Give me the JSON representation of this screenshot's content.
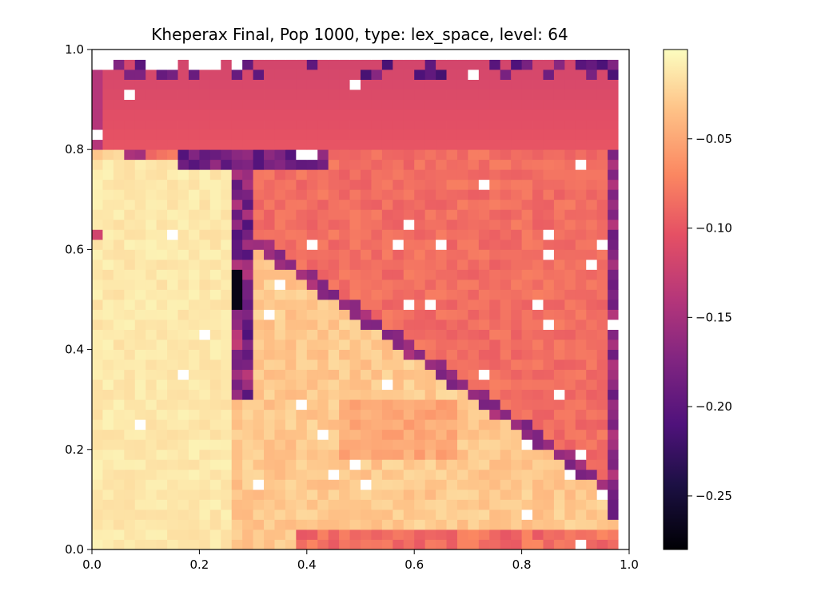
{
  "chart_data": {
    "type": "heatmap",
    "title": "Kheperax Final, Pop 1000, type: lex_space, level: 64",
    "xlabel": "",
    "ylabel": "",
    "xlim": [
      0.0,
      1.0
    ],
    "ylim": [
      0.0,
      1.0
    ],
    "x_ticks": [
      "0.0",
      "0.2",
      "0.4",
      "0.6",
      "0.8",
      "1.0"
    ],
    "y_ticks": [
      "0.0",
      "0.2",
      "0.4",
      "0.6",
      "0.8",
      "1.0"
    ],
    "grid": false,
    "resolution": [
      50,
      50
    ],
    "colormap": "magma",
    "colorbar": {
      "vmin": -0.28,
      "vmax": 0.0,
      "ticks": [
        "−0.05",
        "−0.10",
        "−0.15",
        "−0.20",
        "−0.25"
      ],
      "tick_values": [
        -0.05,
        -0.1,
        -0.15,
        -0.2,
        -0.25
      ]
    },
    "empty_color": "#ffffff",
    "regions": [
      {
        "name": "lower-left plateau",
        "x": [
          0.0,
          0.26
        ],
        "y": [
          0.0,
          0.78
        ],
        "value": -0.01
      },
      {
        "name": "lower-middle wedge",
        "x": [
          0.26,
          0.98
        ],
        "y": [
          0.0,
          0.5
        ],
        "value": -0.03
      },
      {
        "name": "upper-right region",
        "x": [
          0.3,
          0.98
        ],
        "y": [
          0.3,
          0.98
        ],
        "value": -0.08
      },
      {
        "name": "top band",
        "x": [
          0.02,
          0.98
        ],
        "y": [
          0.8,
          0.98
        ],
        "value": -0.1
      }
    ]
  }
}
